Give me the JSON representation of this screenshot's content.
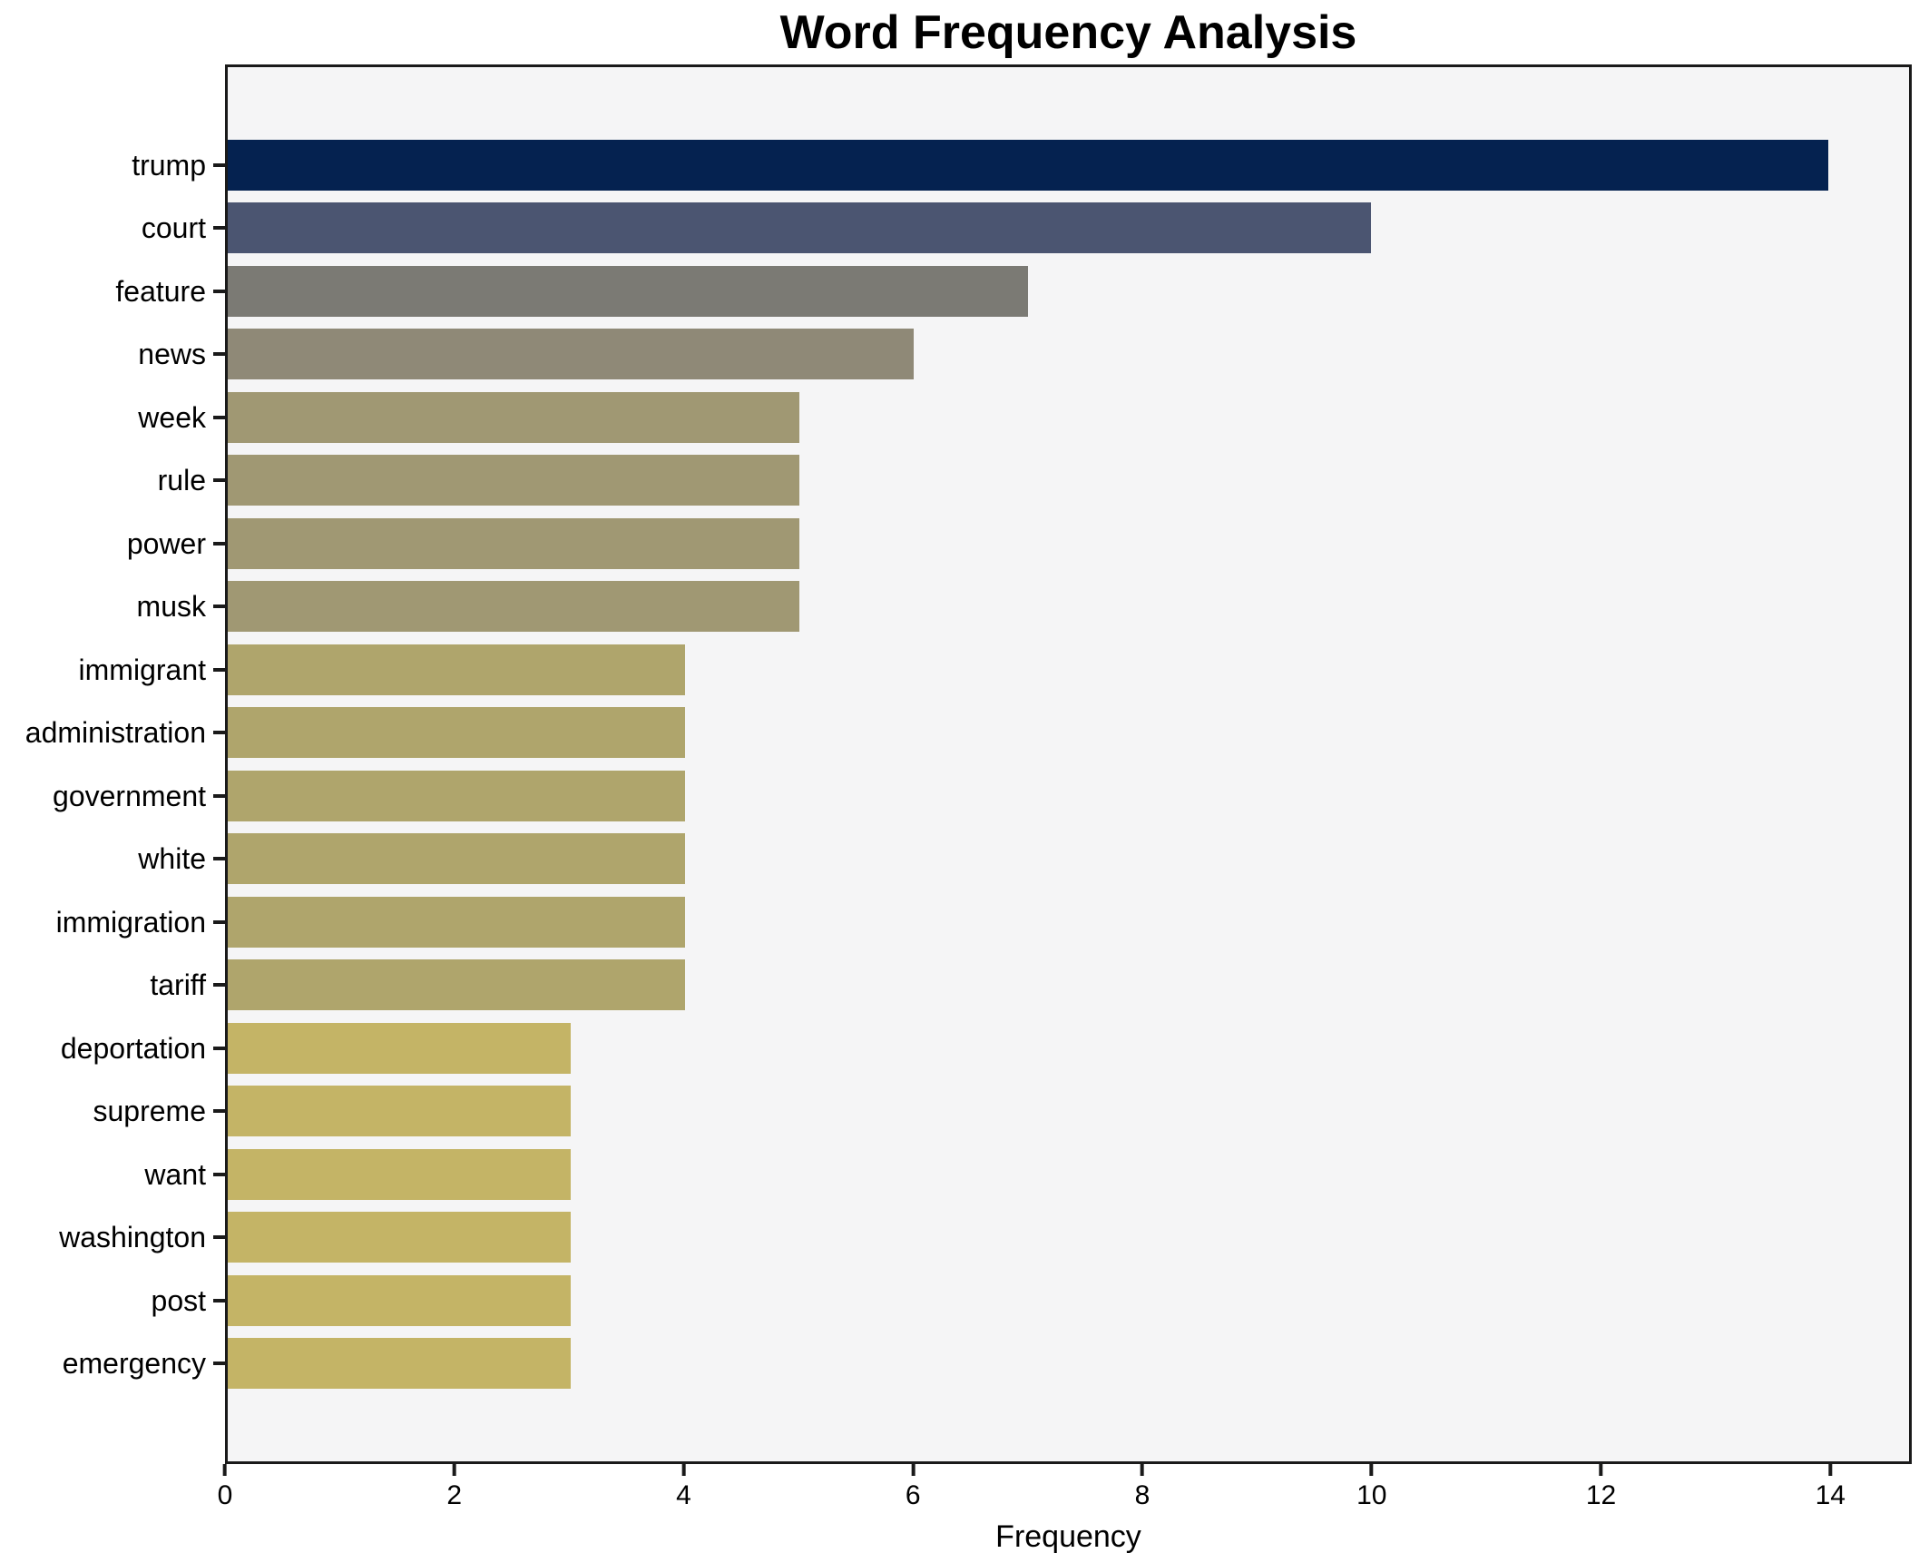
{
  "figure": {
    "background": "#ffffff",
    "plot_background": "#f5f5f6",
    "spine_color": "#1a1a1a",
    "text_color": "#000000"
  },
  "chart_data": {
    "type": "bar",
    "orientation": "horizontal",
    "title": "Word Frequency Analysis",
    "xlabel": "Frequency",
    "ylabel": "",
    "xlim": [
      0,
      14.71
    ],
    "xticks": [
      0,
      2,
      4,
      6,
      8,
      10,
      12,
      14
    ],
    "grid": false,
    "legend": false,
    "bar_thickness": 0.8,
    "categories": [
      "trump",
      "court",
      "feature",
      "news",
      "week",
      "rule",
      "power",
      "musk",
      "immigrant",
      "administration",
      "government",
      "white",
      "immigration",
      "tariff",
      "deportation",
      "supreme",
      "want",
      "washington",
      "post",
      "emergency"
    ],
    "values": [
      14,
      10,
      7,
      6,
      5,
      5,
      5,
      5,
      4,
      4,
      4,
      4,
      4,
      4,
      3,
      3,
      3,
      3,
      3,
      3
    ],
    "bar_colors": [
      "#052250",
      "#4B5571",
      "#7B7A74",
      "#8F8977",
      "#A09873",
      "#A09873",
      "#A09873",
      "#A09873",
      "#AFA56C",
      "#AFA56C",
      "#AFA56C",
      "#AFA56C",
      "#AFA56C",
      "#AFA56C",
      "#C4B466",
      "#C4B466",
      "#C4B466",
      "#C4B466",
      "#C4B466",
      "#C4B466"
    ]
  }
}
